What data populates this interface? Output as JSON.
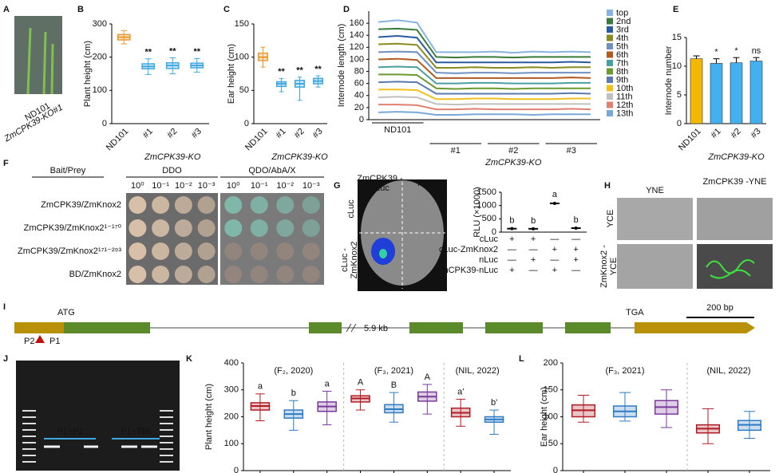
{
  "panel_letters": [
    "A",
    "B",
    "C",
    "D",
    "E",
    "F",
    "G",
    "H",
    "I",
    "J",
    "K",
    "L"
  ],
  "panel_a": {
    "labels": [
      "ND101",
      "ZmCPK39-KO#1"
    ]
  },
  "chart_data": [
    {
      "type": "box",
      "ylabel": "Plant height (cm)",
      "ylim": [
        0,
        300
      ],
      "yticks": [
        0,
        100,
        200,
        300
      ],
      "categories": [
        "ND101",
        "#1",
        "#2",
        "#3"
      ],
      "group_label": "ZmCPK39-KO",
      "sig": [
        null,
        "**",
        "**",
        "**"
      ],
      "boxes": [
        {
          "min": 240,
          "q1": 252,
          "median": 260,
          "q3": 268,
          "max": 280,
          "color": "#e89a30"
        },
        {
          "min": 148,
          "q1": 165,
          "median": 172,
          "q3": 180,
          "max": 195,
          "color": "#3fa9e0"
        },
        {
          "min": 150,
          "q1": 166,
          "median": 175,
          "q3": 183,
          "max": 198,
          "color": "#3fa9e0"
        },
        {
          "min": 155,
          "q1": 168,
          "median": 175,
          "q3": 182,
          "max": 196,
          "color": "#3fa9e0"
        }
      ]
    },
    {
      "type": "box",
      "ylabel": "Ear height (cm)",
      "ylim": [
        0,
        150
      ],
      "yticks": [
        0,
        50,
        100,
        150
      ],
      "categories": [
        "ND101",
        "#1",
        "#2",
        "#3"
      ],
      "group_label": "ZmCPK39-KO",
      "sig": [
        null,
        "**",
        "**",
        "**"
      ],
      "boxes": [
        {
          "min": 85,
          "q1": 95,
          "median": 100,
          "q3": 106,
          "max": 115,
          "color": "#e89a30"
        },
        {
          "min": 48,
          "q1": 56,
          "median": 60,
          "q3": 63,
          "max": 68,
          "color": "#3fa9e0"
        },
        {
          "min": 35,
          "q1": 55,
          "median": 60,
          "q3": 65,
          "max": 70,
          "color": "#3fa9e0"
        },
        {
          "min": 55,
          "q1": 60,
          "median": 64,
          "q3": 68,
          "max": 72,
          "color": "#3fa9e0"
        }
      ]
    },
    {
      "type": "stacked_line",
      "ylabel": "Internode length (cm)",
      "ylim": [
        0,
        180
      ],
      "yticks": [
        0,
        20,
        40,
        60,
        80,
        100,
        120,
        140,
        160
      ],
      "x_group_labels": [
        "ND101",
        "#1",
        "#2",
        "#3"
      ],
      "group_label": "ZmCPK39-KO",
      "series": [
        {
          "name": "top",
          "color": "#8ab4e0",
          "values": [
            12,
            14,
            12,
            8,
            9,
            8,
            9,
            8,
            9,
            8,
            9,
            8
          ]
        },
        {
          "name": "2nd",
          "color": "#3a7a3a",
          "values": [
            13,
            12,
            13,
            9,
            8,
            9,
            9,
            8,
            9,
            9,
            8,
            9
          ]
        },
        {
          "name": "3rd",
          "color": "#2a5aa0",
          "values": [
            12,
            13,
            12,
            9,
            9,
            8,
            9,
            9,
            8,
            9,
            9,
            8
          ]
        },
        {
          "name": "4th",
          "color": "#8a8a20",
          "values": [
            13,
            13,
            12,
            8,
            9,
            9,
            8,
            9,
            9,
            8,
            9,
            9
          ]
        },
        {
          "name": "5th",
          "color": "#7090c0",
          "values": [
            12,
            12,
            13,
            9,
            8,
            9,
            9,
            8,
            9,
            9,
            8,
            9
          ]
        },
        {
          "name": "6th",
          "color": "#b05a20",
          "values": [
            13,
            13,
            12,
            9,
            9,
            8,
            8,
            9,
            9,
            9,
            9,
            8
          ]
        },
        {
          "name": "7th",
          "color": "#4aa0a0",
          "values": [
            12,
            13,
            13,
            8,
            9,
            9,
            9,
            9,
            8,
            8,
            9,
            9
          ]
        },
        {
          "name": "8th",
          "color": "#6a9a30",
          "values": [
            13,
            12,
            12,
            9,
            8,
            9,
            9,
            8,
            9,
            9,
            8,
            9
          ]
        },
        {
          "name": "9th",
          "color": "#5a7ab0",
          "values": [
            12,
            13,
            13,
            9,
            9,
            8,
            8,
            9,
            9,
            9,
            9,
            8
          ]
        },
        {
          "name": "10th",
          "color": "#f0c020",
          "values": [
            13,
            12,
            12,
            8,
            9,
            9,
            9,
            8,
            8,
            8,
            9,
            9
          ]
        },
        {
          "name": "11th",
          "color": "#c0c0c0",
          "values": [
            12,
            13,
            13,
            9,
            8,
            8,
            9,
            9,
            9,
            9,
            8,
            9
          ]
        },
        {
          "name": "12th",
          "color": "#e08070",
          "values": [
            13,
            12,
            12,
            9,
            9,
            9,
            8,
            8,
            9,
            8,
            9,
            8
          ]
        },
        {
          "name": "13th",
          "color": "#7aa8d8",
          "values": [
            12,
            13,
            12,
            8,
            8,
            9,
            9,
            9,
            8,
            9,
            9,
            9
          ]
        }
      ]
    },
    {
      "type": "bar",
      "ylabel": "Internode number",
      "ylim": [
        0,
        15
      ],
      "yticks": [
        0,
        5,
        10,
        15
      ],
      "categories": [
        "ND101",
        "#1",
        "#2",
        "#3"
      ],
      "group_label": "ZmCPK39-KO",
      "values": [
        11.3,
        10.5,
        10.6,
        10.9
      ],
      "errors": [
        0.5,
        0.8,
        0.9,
        0.6
      ],
      "sig": [
        null,
        "*",
        "*",
        "ns"
      ],
      "colors": [
        "#f5b800",
        "#45b0f0",
        "#45b0f0",
        "#45b0f0"
      ]
    },
    {
      "type": "dot",
      "ylabel": "RLU (×1000)",
      "ylim": [
        0,
        1500
      ],
      "yticks": [
        0,
        500,
        1000,
        1500
      ],
      "values": [
        130,
        125,
        1080,
        150
      ],
      "errors": [
        30,
        25,
        55,
        20
      ],
      "letters": [
        "b",
        "b",
        "a",
        "b"
      ],
      "table": [
        {
          "label": "cLuc",
          "marks": [
            "+",
            "+",
            "—",
            "—"
          ]
        },
        {
          "label": "cLuc-ZmKnox2",
          "marks": [
            "—",
            "—",
            "+",
            "+"
          ]
        },
        {
          "label": "nLuc",
          "marks": [
            "—",
            "+",
            "—",
            "+"
          ]
        },
        {
          "label": "ZmCPK39-nLuc",
          "marks": [
            "+",
            "—",
            "+",
            "—"
          ]
        }
      ]
    },
    {
      "type": "box",
      "ylabel": "Plant height (cm)",
      "ylim": [
        0,
        400
      ],
      "yticks": [
        0,
        100,
        200,
        300,
        400
      ],
      "groups": [
        {
          "label": "(F₂, 2020)",
          "letters": [
            "a",
            "b",
            "a"
          ],
          "boxes": [
            {
              "min": 185,
              "q1": 225,
              "median": 240,
              "q3": 252,
              "max": 285,
              "color": "#b01c24"
            },
            {
              "min": 150,
              "q1": 195,
              "median": 210,
              "q3": 225,
              "max": 260,
              "color": "#2e7bc4"
            },
            {
              "min": 170,
              "q1": 220,
              "median": 238,
              "q3": 255,
              "max": 295,
              "color": "#7a3a9a"
            }
          ]
        },
        {
          "label": "(F₃, 2021)",
          "letters": [
            "A",
            "B",
            "A"
          ],
          "boxes": [
            {
              "min": 225,
              "q1": 255,
              "median": 268,
              "q3": 278,
              "max": 300,
              "color": "#b01c24"
            },
            {
              "min": 180,
              "q1": 215,
              "median": 228,
              "q3": 245,
              "max": 290,
              "color": "#2e7bc4"
            },
            {
              "min": 210,
              "q1": 258,
              "median": 275,
              "q3": 292,
              "max": 320,
              "color": "#7a3a9a"
            }
          ]
        },
        {
          "label": "(NIL, 2022)",
          "letters": [
            "a'",
            "b'"
          ],
          "boxes": [
            {
              "min": 165,
              "q1": 200,
              "median": 215,
              "q3": 232,
              "max": 265,
              "color": "#b01c24"
            },
            {
              "min": 135,
              "q1": 180,
              "median": 190,
              "q3": 200,
              "max": 225,
              "color": "#2e7bc4"
            }
          ]
        }
      ]
    },
    {
      "type": "box",
      "ylabel": "Ear height (cm)",
      "ylim": [
        0,
        200
      ],
      "yticks": [
        0,
        50,
        100,
        150,
        200
      ],
      "groups": [
        {
          "label": "(F₃, 2021)",
          "boxes": [
            {
              "min": 90,
              "q1": 100,
              "median": 112,
              "q3": 122,
              "max": 140,
              "color": "#b01c24"
            },
            {
              "min": 92,
              "q1": 100,
              "median": 110,
              "q3": 120,
              "max": 145,
              "color": "#2e7bc4"
            },
            {
              "min": 80,
              "q1": 105,
              "median": 118,
              "q3": 130,
              "max": 150,
              "color": "#7a3a9a"
            }
          ]
        },
        {
          "label": "(NIL, 2022)",
          "boxes": [
            {
              "min": 50,
              "q1": 70,
              "median": 78,
              "q3": 85,
              "max": 115,
              "color": "#b01c24"
            },
            {
              "min": 60,
              "q1": 75,
              "median": 85,
              "q3": 93,
              "max": 110,
              "color": "#2e7bc4"
            }
          ]
        }
      ]
    }
  ],
  "panel_f": {
    "bait_prey": "Bait/Prey",
    "media": [
      "DDO",
      "QDO/AbA/X"
    ],
    "dilutions": [
      "10⁰",
      "10⁻¹",
      "10⁻²",
      "10⁻³"
    ],
    "rows": [
      "ZmCPK39/ZmKnox2",
      "ZmCPK39/ZmKnox2¹⁻¹⁷⁰",
      "ZmCPK39/ZmKnox2¹⁷¹⁻²⁹³",
      "BD/ZmKnox2"
    ]
  },
  "panel_g": {
    "columns": [
      "ZmCPK39 -nLuc",
      "nLuc"
    ],
    "rows": [
      "cLuc",
      "cLuc -ZmKnox2"
    ]
  },
  "panel_h": {
    "columns": [
      "YNE",
      "ZmCPK39 -YNE"
    ],
    "rows": [
      "YCE",
      "ZmKnox2 -YCE"
    ]
  },
  "panel_i": {
    "start": "ATG",
    "stop": "TGA",
    "intron": "5.9 kb",
    "scale": "200 bp",
    "primers": [
      "P2",
      "P1"
    ]
  },
  "panel_j": {
    "lanes": [
      "P1+P2",
      "P1+TIR"
    ]
  }
}
